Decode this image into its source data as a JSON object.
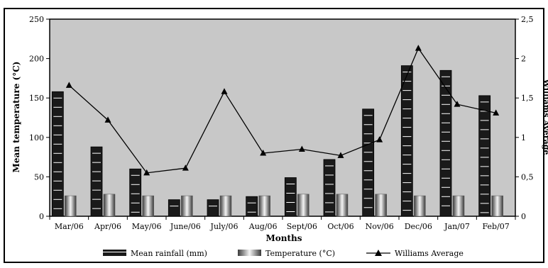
{
  "chart_data": {
    "type": "bar",
    "title": "",
    "xlabel": "Months",
    "ylabel": "Mean temperature (°C)",
    "y2label": "Williams Average",
    "ylim": [
      0,
      250
    ],
    "y2lim": [
      0,
      2.5
    ],
    "yticks": [
      "0",
      "50",
      "100",
      "150",
      "200",
      "250"
    ],
    "y2ticks": [
      "0",
      "0,5",
      "1",
      "1,5",
      "2",
      "2,5"
    ],
    "categories": [
      "Mar/06",
      "Apr/06",
      "May/06",
      "June/06",
      "July/06",
      "Aug/06",
      "Sept/06",
      "Oct/06",
      "Nov/06",
      "Dec/06",
      "Jan/07",
      "Feb/07"
    ],
    "series": [
      {
        "name": "Mean rainfall (mm)",
        "type": "bar",
        "axis": "left",
        "values": [
          158,
          88,
          60,
          21,
          21,
          25,
          49,
          72,
          136,
          191,
          185,
          153
        ]
      },
      {
        "name": "Temperature (°C)",
        "type": "bar",
        "axis": "left",
        "values": [
          26,
          28,
          26,
          26,
          26,
          26,
          28,
          28,
          28,
          26,
          26,
          26
        ]
      },
      {
        "name": "Williams Average",
        "type": "line",
        "axis": "right",
        "values": [
          1.66,
          1.22,
          0.55,
          0.61,
          1.58,
          0.8,
          0.85,
          0.77,
          0.97,
          2.13,
          1.42,
          1.31
        ]
      }
    ],
    "plot_background": "#c8c8c8",
    "colors": {
      "rainfall": "#1a1a1a",
      "rainfall_stripe": "#ffffff",
      "temperature": "#9a9a9a",
      "line": "#000000"
    },
    "legend_position": "bottom"
  }
}
